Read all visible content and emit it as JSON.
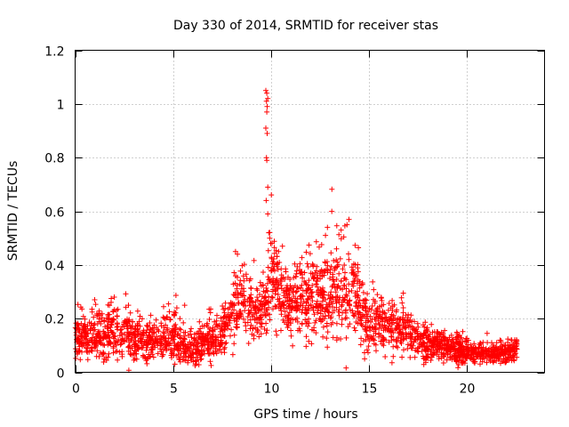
{
  "chart_data": {
    "type": "scatter",
    "title": "Day 330 of 2014, SRMTID for receiver stas",
    "xlabel": "GPS time / hours",
    "ylabel": "SRMTID / TECUs",
    "xlim": [
      0,
      24
    ],
    "ylim": [
      0,
      1.2
    ],
    "x_ticks": [
      0,
      5,
      10,
      15,
      20
    ],
    "x_tick_labels": [
      "0",
      "5",
      "10",
      "15",
      "20"
    ],
    "y_ticks": [
      0,
      0.2,
      0.4,
      0.6,
      0.8,
      1,
      1.2
    ],
    "y_tick_labels": [
      "0",
      "0.2",
      "0.4",
      "0.6",
      "0.8",
      "1",
      "1.2"
    ],
    "grid": true,
    "marker": "+",
    "colors": {
      "points": "#ff0000",
      "grid": "#a0a0a0",
      "axes": "#000000"
    },
    "data_extent_hours": [
      0,
      22.6
    ],
    "envelope": {
      "description": "approximate central level and spread of SRMTID (TECUs) per hour",
      "hours": [
        0,
        1,
        2,
        3,
        4,
        5,
        5.5,
        6,
        7,
        7.8,
        8.3,
        9,
        9.8,
        10,
        10.5,
        11,
        12,
        13,
        13.8,
        14.3,
        15,
        16,
        17,
        18,
        19,
        20,
        21,
        22,
        22.6
      ],
      "center": [
        0.13,
        0.14,
        0.15,
        0.13,
        0.12,
        0.14,
        0.1,
        0.09,
        0.12,
        0.17,
        0.27,
        0.22,
        0.25,
        0.38,
        0.3,
        0.25,
        0.27,
        0.31,
        0.3,
        0.3,
        0.18,
        0.17,
        0.15,
        0.11,
        0.09,
        0.08,
        0.07,
        0.07,
        0.09
      ],
      "spread": [
        0.06,
        0.07,
        0.08,
        0.07,
        0.06,
        0.07,
        0.05,
        0.05,
        0.06,
        0.07,
        0.1,
        0.08,
        0.1,
        0.12,
        0.11,
        0.1,
        0.12,
        0.14,
        0.15,
        0.12,
        0.09,
        0.08,
        0.07,
        0.05,
        0.04,
        0.04,
        0.03,
        0.03,
        0.05
      ]
    },
    "peak_points": [
      [
        9.75,
        1.05
      ],
      [
        9.8,
        1.04
      ],
      [
        9.85,
        1.02
      ],
      [
        9.78,
        1.01
      ],
      [
        9.82,
        0.99
      ],
      [
        9.8,
        0.97
      ],
      [
        9.75,
        0.91
      ],
      [
        9.82,
        0.89
      ],
      [
        9.78,
        0.8
      ],
      [
        9.8,
        0.79
      ],
      [
        9.85,
        0.69
      ],
      [
        9.77,
        0.64
      ],
      [
        9.85,
        0.59
      ],
      [
        9.9,
        0.52
      ],
      [
        9.95,
        0.5
      ],
      [
        10.0,
        0.48
      ]
    ],
    "notable_points": [
      [
        14.0,
        0.57
      ],
      [
        13.9,
        0.55
      ],
      [
        12.9,
        0.54
      ],
      [
        13.6,
        0.53
      ],
      [
        12.8,
        0.51
      ],
      [
        8.2,
        0.45
      ],
      [
        8.3,
        0.44
      ],
      [
        10.6,
        0.47
      ],
      [
        10.4,
        0.45
      ],
      [
        2.0,
        0.28
      ],
      [
        1.0,
        0.27
      ],
      [
        5.2,
        0.24
      ],
      [
        5.6,
        0.25
      ],
      [
        14.8,
        0.05
      ],
      [
        5.1,
        0.03
      ]
    ]
  }
}
